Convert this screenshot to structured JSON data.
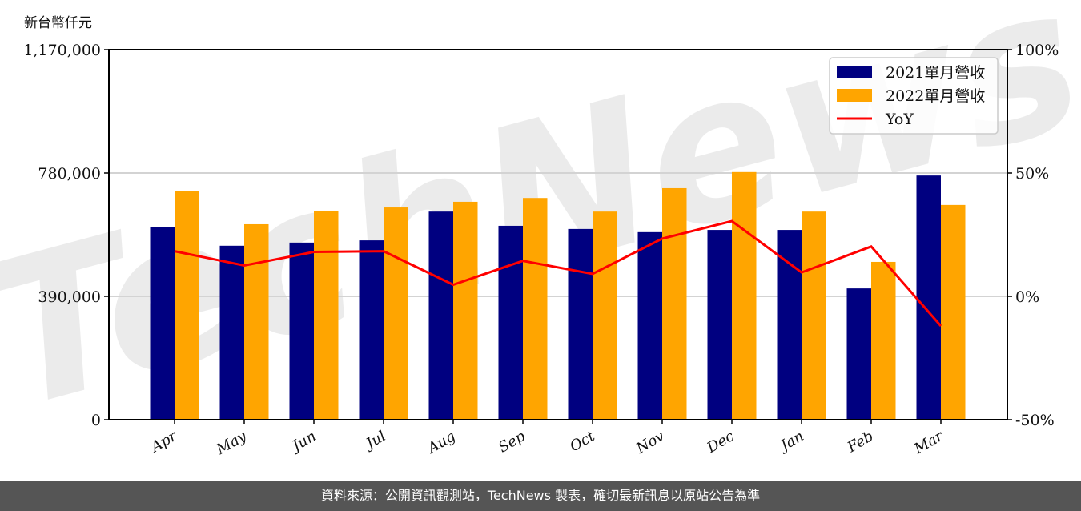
{
  "chart_data": {
    "type": "bar",
    "title": "",
    "ylabel": "新台幣仟元",
    "xlabel": "",
    "categories": [
      "Apr",
      "May",
      "Jun",
      "Jul",
      "Aug",
      "Sep",
      "Oct",
      "Nov",
      "Dec",
      "Jan",
      "Feb",
      "Mar"
    ],
    "series": [
      {
        "name": "2021單月營收",
        "type": "bar",
        "color": "#000080",
        "values": [
          610000,
          550000,
          560000,
          567000,
          658000,
          613000,
          603000,
          593000,
          600000,
          600000,
          415000,
          772000
        ]
      },
      {
        "name": "2022單月營收",
        "type": "bar",
        "color": "#FFA500",
        "values": [
          722000,
          618000,
          661000,
          671000,
          689000,
          701000,
          658000,
          732000,
          783000,
          658000,
          499000,
          679000
        ]
      },
      {
        "name": "YoY",
        "type": "line",
        "axis": "right",
        "color": "#FF0000",
        "values": [
          18.3,
          12.5,
          18.0,
          18.3,
          4.7,
          14.4,
          9.1,
          23.4,
          30.5,
          9.7,
          20.2,
          -12.0
        ]
      }
    ],
    "ylim": [
      0,
      1170000
    ],
    "yticks": [
      0,
      390000,
      780000,
      1170000
    ],
    "ytick_labels": [
      "0",
      "390,000",
      "780,000",
      "1,170,000"
    ],
    "y2lim": [
      -50,
      100
    ],
    "y2ticks": [
      -50,
      0,
      50,
      100
    ],
    "y2tick_labels": [
      "-50%",
      "0%",
      "50%",
      "100%"
    ],
    "grid": "horizontal",
    "legend_position": "upper right",
    "watermark": "TechNews"
  },
  "unit_label": "新台幣仟元",
  "legend": [
    {
      "label": "2021單月營收",
      "kind": "patch",
      "color": "#000080"
    },
    {
      "label": "2022單月營收",
      "kind": "patch",
      "color": "#FFA500"
    },
    {
      "label": "YoY",
      "kind": "line",
      "color": "#FF0000"
    }
  ],
  "footer": {
    "text": "資料來源：公開資訊觀測站，TechNews 製表，確切最新訊息以原站公告為準"
  }
}
